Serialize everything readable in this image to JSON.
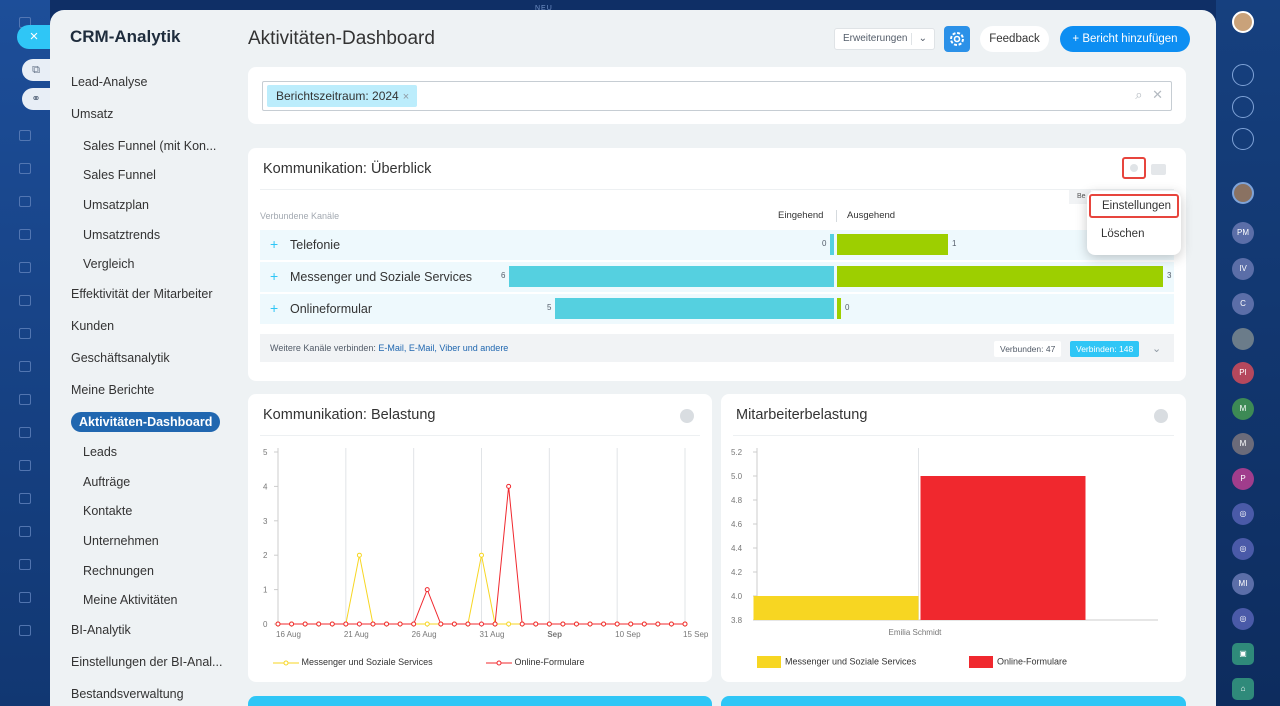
{
  "window": {
    "top_mark": "NEU"
  },
  "nav": {
    "title": "CRM-Analytik",
    "items": [
      {
        "label": "Lead-Analyse"
      },
      {
        "label": "Umsatz"
      },
      {
        "label": "Sales Funnel (mit Kon..."
      },
      {
        "label": "Sales Funnel"
      },
      {
        "label": "Umsatzplan"
      },
      {
        "label": "Umsatztrends"
      },
      {
        "label": "Vergleich"
      },
      {
        "label": "Effektivität der Mitarbeiter"
      },
      {
        "label": "Kunden"
      },
      {
        "label": "Geschäftsanalytik"
      },
      {
        "label": "Meine Berichte"
      },
      {
        "label": "Aktivitäten-Dashboard"
      },
      {
        "label": "Leads"
      },
      {
        "label": "Aufträge"
      },
      {
        "label": "Kontakte"
      },
      {
        "label": "Unternehmen"
      },
      {
        "label": "Rechnungen"
      },
      {
        "label": "Meine Aktivitäten"
      },
      {
        "label": "BI-Analytik"
      },
      {
        "label": "Einstellungen der BI-Anal..."
      },
      {
        "label": "Bestandsverwaltung"
      }
    ]
  },
  "header": {
    "title": "Aktivitäten-Dashboard",
    "extensions_label": "Erweiterungen",
    "feedback_label": "Feedback",
    "add_report_label": "+ Bericht hinzufügen"
  },
  "filter": {
    "tag": "Berichtszeitraum: 2024"
  },
  "overview": {
    "title": "Kommunikation: Überblick",
    "col_channels": "Verbundene Kanäle",
    "col_incoming": "Eingehend",
    "col_outgoing": "Ausgehend",
    "tooltip": "Be",
    "rows": [
      {
        "label": "Telefonie",
        "incoming": 0,
        "outgoing": 1
      },
      {
        "label": "Messenger und Soziale Services",
        "incoming": 6,
        "outgoing": 3
      },
      {
        "label": "Onlineformular",
        "incoming": 5,
        "outgoing": 0
      }
    ],
    "footer_text": "Weitere Kanäle verbinden:",
    "footer_links": "E-Mail, E-Mail, Viber und andere",
    "connected_label": "Verbunden: 47",
    "connect_label": "Verbinden: 148",
    "menu": {
      "settings": "Einstellungen",
      "delete": "Löschen"
    }
  },
  "load_chart": {
    "title": "Kommunikation: Belastung",
    "chart_data": {
      "type": "line",
      "ylim": [
        0,
        5
      ],
      "yticks": [
        "0",
        "1",
        "2",
        "3",
        "4",
        "5"
      ],
      "xticks": [
        "16 Aug",
        "21 Aug",
        "26 Aug",
        "31 Aug",
        "Sep",
        "10 Sep",
        "15 Sep"
      ],
      "x_start": "2024-08-16",
      "series": [
        {
          "name": "Messenger und Soziale Services",
          "color": "#f7d622",
          "values": [
            0,
            0,
            0,
            0,
            0,
            0,
            2,
            0,
            0,
            0,
            0,
            0,
            0,
            0,
            0,
            2,
            0,
            0,
            0,
            0,
            0,
            0,
            0,
            0,
            0,
            0,
            0,
            0,
            0,
            0,
            0
          ]
        },
        {
          "name": "Online-Formulare",
          "color": "#f0282e",
          "values": [
            0,
            0,
            0,
            0,
            0,
            0,
            0,
            0,
            0,
            0,
            0,
            1,
            0,
            0,
            0,
            0,
            0,
            4,
            0,
            0,
            0,
            0,
            0,
            0,
            0,
            0,
            0,
            0,
            0,
            0,
            0
          ]
        }
      ]
    }
  },
  "emp_chart": {
    "title": "Mitarbeiterbelastung",
    "chart_data": {
      "type": "bar",
      "categories": [
        "Emilia Schmidt"
      ],
      "ylim": [
        3.8,
        5.2
      ],
      "yticks": [
        "3.8",
        "4.0",
        "4.2",
        "4.4",
        "4.6",
        "4.8",
        "5.0",
        "5.2"
      ],
      "series": [
        {
          "name": "Messenger und Soziale Services",
          "color": "#f7d622",
          "values": [
            4
          ]
        },
        {
          "name": "Online-Formulare",
          "color": "#f0282e",
          "values": [
            5
          ]
        }
      ]
    }
  }
}
